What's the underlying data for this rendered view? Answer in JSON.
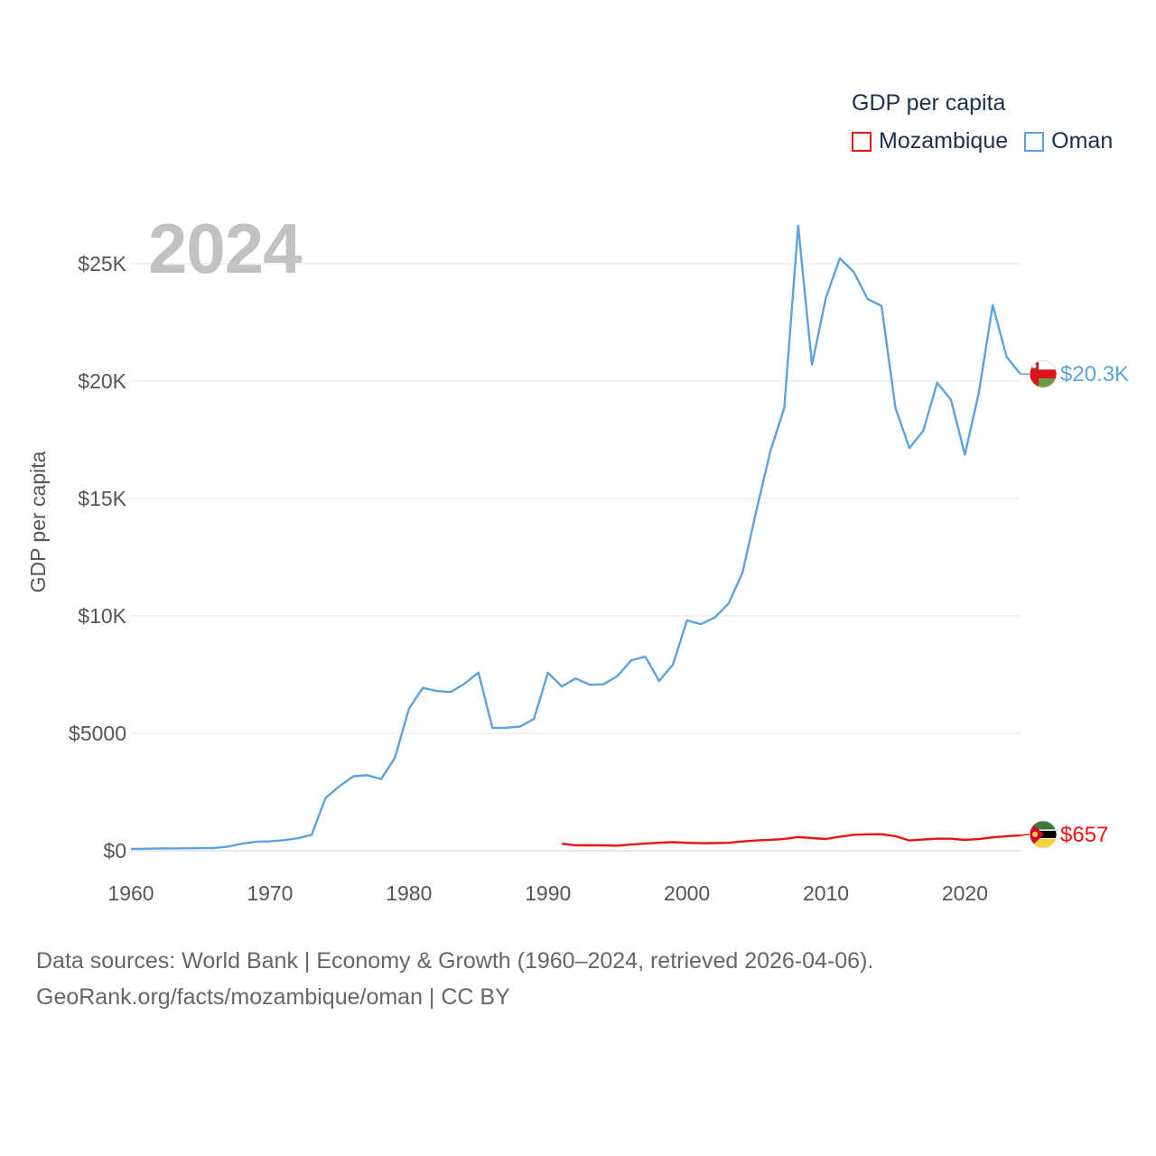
{
  "legend": {
    "title": "GDP per capita",
    "items": [
      {
        "name": "Mozambique",
        "color": "#ee1111"
      },
      {
        "name": "Oman",
        "color": "#5ba3e0"
      }
    ]
  },
  "year_label": "2024",
  "footer": {
    "line1": "Data sources: World Bank | Economy & Growth (1960–2024, retrieved 2026-04-06).",
    "line2": "GeoRank.org/facts/mozambique/oman | CC BY"
  },
  "chart_data": {
    "type": "line",
    "title": "GDP per capita",
    "ylabel": "GDP per capita",
    "xlabel": "",
    "xlim": [
      1960,
      2024
    ],
    "ylim": [
      0,
      25000
    ],
    "x_ticks": [
      1960,
      1970,
      1980,
      1990,
      2000,
      2010,
      2020
    ],
    "y_ticks": [
      {
        "value": 0,
        "label": "$0"
      },
      {
        "value": 5000,
        "label": "$5000"
      },
      {
        "value": 10000,
        "label": "$10K"
      },
      {
        "value": 15000,
        "label": "$15K"
      },
      {
        "value": 20000,
        "label": "$20K"
      },
      {
        "value": 25000,
        "label": "$25K"
      }
    ],
    "grid": true,
    "series": [
      {
        "name": "Oman",
        "color": "#5ba3e0",
        "end_label": "$20.3K",
        "x": [
          1960,
          1961,
          1962,
          1963,
          1964,
          1965,
          1966,
          1967,
          1968,
          1969,
          1970,
          1971,
          1972,
          1973,
          1974,
          1975,
          1976,
          1977,
          1978,
          1979,
          1980,
          1981,
          1982,
          1983,
          1984,
          1985,
          1986,
          1987,
          1988,
          1989,
          1990,
          1991,
          1992,
          1993,
          1994,
          1995,
          1996,
          1997,
          1998,
          1999,
          2000,
          2001,
          2002,
          2003,
          2004,
          2005,
          2006,
          2007,
          2008,
          2009,
          2010,
          2011,
          2012,
          2013,
          2014,
          2015,
          2016,
          2017,
          2018,
          2019,
          2020,
          2021,
          2022,
          2023,
          2024
        ],
        "values": [
          80,
          85,
          95,
          100,
          105,
          110,
          110,
          180,
          300,
          380,
          400,
          450,
          530,
          680,
          2250,
          2750,
          3170,
          3220,
          3050,
          3970,
          6050,
          6940,
          6800,
          6760,
          7110,
          7590,
          5230,
          5240,
          5290,
          5620,
          7580,
          7000,
          7340,
          7070,
          7090,
          7440,
          8110,
          8270,
          7230,
          7930,
          9810,
          9650,
          9930,
          10530,
          11850,
          14500,
          17020,
          18860,
          26620,
          20700,
          23550,
          25230,
          24650,
          23500,
          23200,
          18860,
          17150,
          17880,
          19930,
          19200,
          16870,
          19500,
          23240,
          21030,
          20300
        ]
      },
      {
        "name": "Mozambique",
        "color": "#ee1111",
        "end_label": "$657",
        "x": [
          1991,
          1992,
          1993,
          1994,
          1995,
          1996,
          1997,
          1998,
          1999,
          2000,
          2001,
          2002,
          2003,
          2004,
          2005,
          2006,
          2007,
          2008,
          2009,
          2010,
          2011,
          2012,
          2013,
          2014,
          2015,
          2016,
          2017,
          2018,
          2019,
          2020,
          2021,
          2022,
          2023,
          2024
        ],
        "values": [
          300,
          230,
          230,
          225,
          215,
          265,
          305,
          340,
          365,
          340,
          320,
          325,
          340,
          395,
          440,
          465,
          505,
          585,
          540,
          500,
          600,
          680,
          700,
          705,
          620,
          440,
          475,
          510,
          510,
          460,
          495,
          570,
          620,
          657
        ]
      }
    ]
  }
}
